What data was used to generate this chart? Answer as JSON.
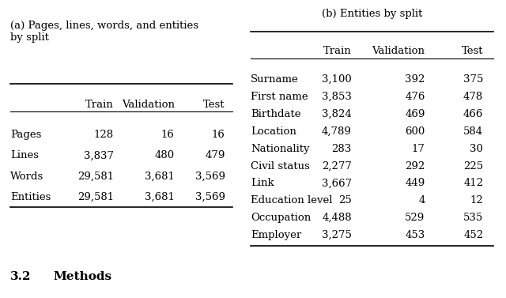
{
  "table_a_caption": "(a) Pages, lines, words, and entities\nby split",
  "table_a_headers": [
    "",
    "Train",
    "Validation",
    "Test"
  ],
  "table_a_rows": [
    [
      "Pages",
      "128",
      "16",
      "16"
    ],
    [
      "Lines",
      "3,837",
      "480",
      "479"
    ],
    [
      "Words",
      "29,581",
      "3,681",
      "3,569"
    ],
    [
      "Entities",
      "29,581",
      "3,681",
      "3,569"
    ]
  ],
  "table_b_caption": "(b) Entities by split",
  "table_b_headers": [
    "",
    "Train",
    "Validation",
    "Test"
  ],
  "table_b_rows": [
    [
      "Surname",
      "3,100",
      "392",
      "375"
    ],
    [
      "First name",
      "3,853",
      "476",
      "478"
    ],
    [
      "Birthdate",
      "3,824",
      "469",
      "466"
    ],
    [
      "Location",
      "4,789",
      "600",
      "584"
    ],
    [
      "Nationality",
      "283",
      "17",
      "30"
    ],
    [
      "Civil status",
      "2,277",
      "292",
      "225"
    ],
    [
      "Link",
      "3,667",
      "449",
      "412"
    ],
    [
      "Education level",
      "25",
      "4",
      "12"
    ],
    [
      "Occupation",
      "4,488",
      "529",
      "535"
    ],
    [
      "Employer",
      "3,275",
      "453",
      "452"
    ]
  ],
  "section_label": "3.2",
  "section_title": "Methods",
  "bg_color": "#ffffff",
  "text_color": "#000000",
  "font_size": 9.5,
  "section_font_size": 11
}
